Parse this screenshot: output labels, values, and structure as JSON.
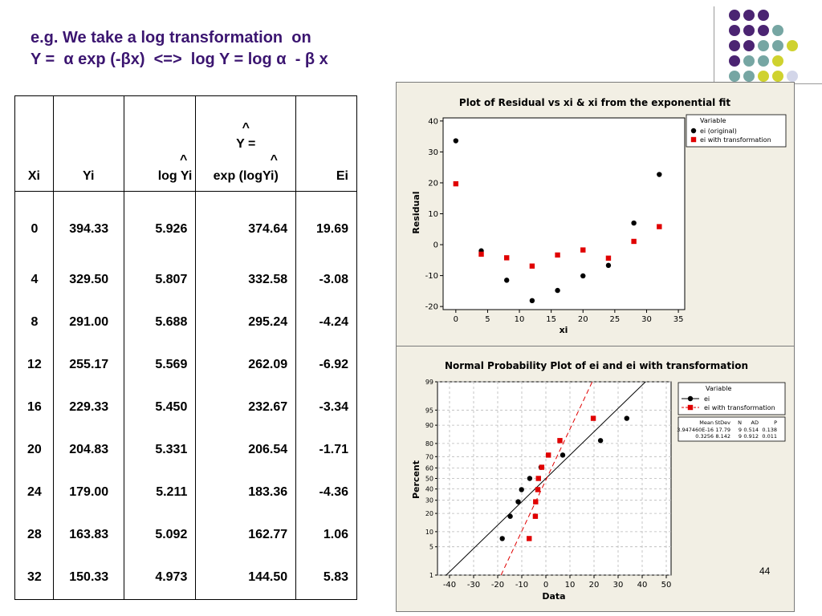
{
  "slide": {
    "title_line1": "e.g. We take a log transformation  on",
    "title_line2": "Y =  α exp (-βx)  <=>  log Y = log α  - β x",
    "page_number": "44"
  },
  "decor": {
    "dot_colors": {
      "purple": "#4b2472",
      "teal": "#76a6a3",
      "yellow": "#cfd22f",
      "lilac": "#d3d6e9"
    }
  },
  "table": {
    "headers": {
      "xi": "Xi",
      "yi": "Yi",
      "logyi_hat": "^",
      "logyi": "log Yi",
      "yhat_hat": "^",
      "yhat_eq": "Y =",
      "yhat_hat2": "^",
      "yhat_expr": "exp (logYi)",
      "ei": "Ei"
    },
    "rows": [
      {
        "xi": "0",
        "yi": "394.33",
        "logyi": "5.926",
        "yhat": "374.64",
        "ei": "19.69"
      },
      {
        "xi": "4",
        "yi": "329.50",
        "logyi": "5.807",
        "yhat": "332.58",
        "ei": "-3.08"
      },
      {
        "xi": "8",
        "yi": "291.00",
        "logyi": "5.688",
        "yhat": "295.24",
        "ei": "-4.24"
      },
      {
        "xi": "12",
        "yi": "255.17",
        "logyi": "5.569",
        "yhat": "262.09",
        "ei": "-6.92"
      },
      {
        "xi": "16",
        "yi": "229.33",
        "logyi": "5.450",
        "yhat": "232.67",
        "ei": "-3.34"
      },
      {
        "xi": "20",
        "yi": "204.83",
        "logyi": "5.331",
        "yhat": "206.54",
        "ei": "-1.71"
      },
      {
        "xi": "24",
        "yi": "179.00",
        "logyi": "5.211",
        "yhat": "183.36",
        "ei": "-4.36"
      },
      {
        "xi": "28",
        "yi": "163.83",
        "logyi": "5.092",
        "yhat": "162.77",
        "ei": "1.06"
      },
      {
        "xi": "32",
        "yi": "150.33",
        "logyi": "4.973",
        "yhat": "144.50",
        "ei": "5.83"
      }
    ]
  },
  "chart_data": [
    {
      "type": "scatter",
      "title": "Plot of Residual vs xi & xi from the exponential fit",
      "xlabel": "xi",
      "ylabel": "Residual",
      "xlim": [
        -2,
        36
      ],
      "ylim": [
        -21,
        41
      ],
      "xticks": [
        0,
        5,
        10,
        15,
        20,
        25,
        30,
        35
      ],
      "yticks": [
        -20,
        -10,
        0,
        10,
        20,
        30,
        40
      ],
      "grid": false,
      "legend": {
        "title": "Variable",
        "position": "top-right"
      },
      "series": [
        {
          "name": "ei (original)",
          "color": "#000000",
          "marker": "circle",
          "x": [
            0,
            4,
            8,
            12,
            16,
            20,
            24,
            28,
            32
          ],
          "y": [
            33.6,
            -2.0,
            -11.5,
            -18.1,
            -14.8,
            -10.1,
            -6.7,
            7.0,
            22.7
          ]
        },
        {
          "name": "ei with transformation",
          "color": "#e00000",
          "marker": "square",
          "x": [
            0,
            4,
            8,
            12,
            16,
            20,
            24,
            28,
            32
          ],
          "y": [
            19.69,
            -3.08,
            -4.24,
            -6.92,
            -3.34,
            -1.71,
            -4.36,
            1.06,
            5.83
          ]
        }
      ]
    },
    {
      "type": "scatter",
      "title": "Normal Probability Plot of ei and ei with transformation",
      "xlabel": "Data",
      "ylabel": "Percent",
      "xlim": [
        -45,
        52
      ],
      "xticks": [
        -40,
        -30,
        -20,
        -10,
        0,
        10,
        20,
        30,
        40,
        50
      ],
      "yticks": [
        1,
        5,
        10,
        20,
        30,
        40,
        50,
        60,
        70,
        80,
        90,
        95,
        99
      ],
      "y_scale": "normal probability",
      "grid": true,
      "legend": {
        "title": "Variable",
        "position": "top-right"
      },
      "series": [
        {
          "name": "ei",
          "color": "#000000",
          "marker": "circle",
          "line": "solid",
          "x": [
            -18.1,
            -14.8,
            -11.5,
            -10.1,
            -6.7,
            -2.0,
            7.0,
            22.7,
            33.6
          ],
          "y": [
            7.4,
            18.1,
            28.7,
            39.4,
            50,
            60.6,
            71.3,
            81.9,
            92.6
          ],
          "fit": {
            "mean": 0,
            "sd": 17.79
          }
        },
        {
          "name": "ei with transformation",
          "color": "#e00000",
          "marker": "square",
          "line": "dashed",
          "x": [
            -6.92,
            -4.36,
            -4.24,
            -3.34,
            -3.08,
            -1.71,
            1.06,
            5.83,
            19.69
          ],
          "y": [
            7.4,
            18.1,
            28.7,
            39.4,
            50,
            60.6,
            71.3,
            81.9,
            92.6
          ],
          "fit": {
            "mean": 0.3256,
            "sd": 8.142
          }
        }
      ],
      "stats_table": {
        "headers": [
          "Mean",
          "StDev",
          "N",
          "AD",
          "P"
        ],
        "rows": [
          [
            "3.947460E-16",
            "17.79",
            "9",
            "0.514",
            "0.138"
          ],
          [
            "0.3256",
            "8.142",
            "9",
            "0.912",
            "0.011"
          ]
        ]
      }
    }
  ]
}
